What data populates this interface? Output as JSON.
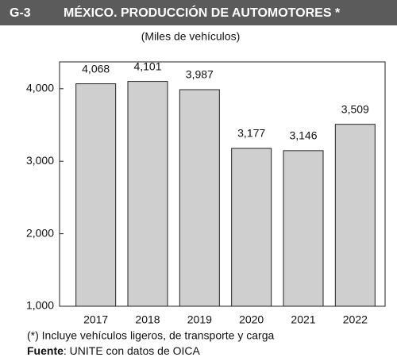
{
  "chart_data": {
    "type": "bar",
    "label": "G-3",
    "title": "MÉXICO. PRODUCCIÓN DE AUTOMOTORES *",
    "subtitle": "(Miles de vehículos)",
    "categories": [
      "2017",
      "2018",
      "2019",
      "2020",
      "2021",
      "2022"
    ],
    "values": [
      4068,
      4101,
      3987,
      3177,
      3146,
      3509
    ],
    "value_labels": [
      "4,068",
      "4,101",
      "3,987",
      "3,177",
      "3,146",
      "3,509"
    ],
    "color": "#cfcfcf",
    "ylim": [
      1000,
      4370
    ],
    "yticks": [
      {
        "value": 1000,
        "label": "1,000"
      },
      {
        "value": 2000,
        "label": "2,000"
      },
      {
        "value": 3000,
        "label": "3,000"
      },
      {
        "value": 4000,
        "label": "4,000"
      }
    ],
    "grid": false,
    "note": "(*) Incluye vehículos ligeros, de transporte y carga",
    "source_label": "Fuente",
    "source": ": UNITE con datos de OICA"
  }
}
